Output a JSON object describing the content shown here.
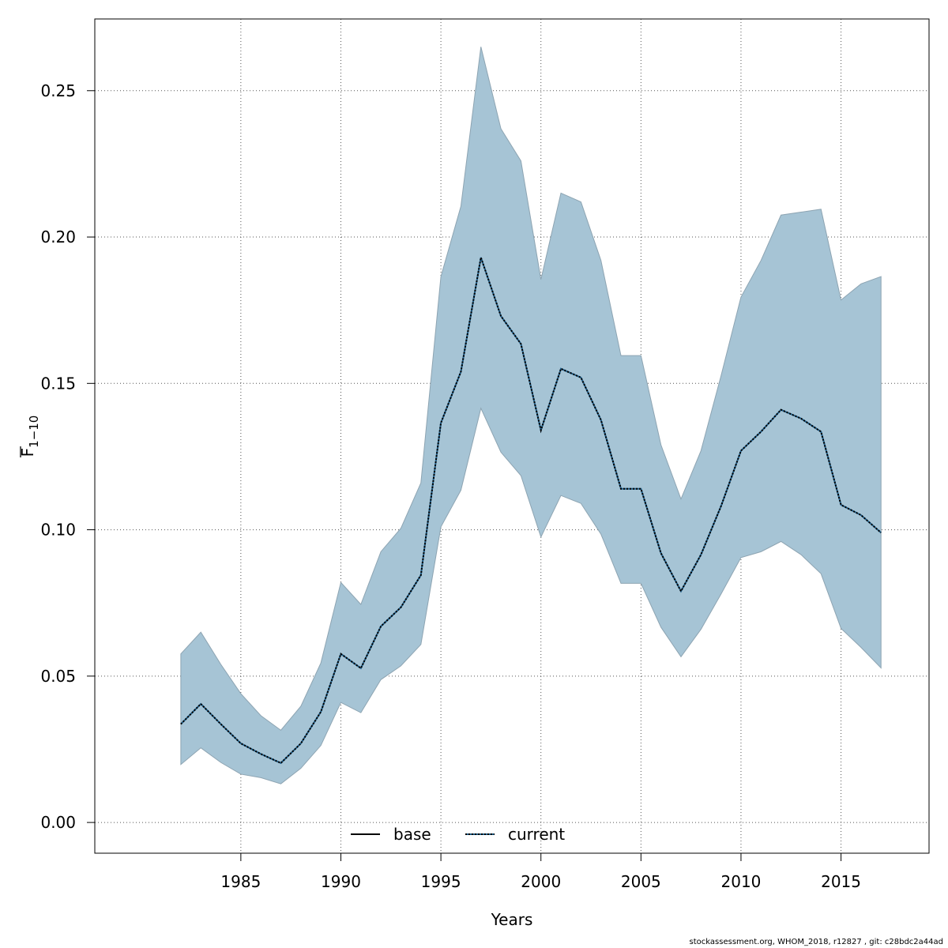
{
  "chart_data": {
    "type": "area",
    "xlabel": "Years",
    "ylabel": "F",
    "ylabel_subscript": "1−10",
    "xlim": [
      1977.7,
      2019.4
    ],
    "ylim": [
      -0.0105,
      0.2745
    ],
    "x_ticks": [
      1985,
      1990,
      1995,
      2000,
      2005,
      2010,
      2015
    ],
    "y_ticks": [
      "0.00",
      "0.05",
      "0.10",
      "0.15",
      "0.20",
      "0.25"
    ],
    "grid": true,
    "years": [
      1982,
      1983,
      1984,
      1985,
      1986,
      1987,
      1988,
      1989,
      1990,
      1991,
      1992,
      1993,
      1994,
      1995,
      1996,
      1997,
      1998,
      1999,
      2000,
      2001,
      2002,
      2003,
      2004,
      2005,
      2006,
      2007,
      2008,
      2009,
      2010,
      2011,
      2012,
      2013,
      2014,
      2015,
      2016,
      2017
    ],
    "series": [
      {
        "name": "current",
        "style": "dotted",
        "color": "#000000",
        "values": [
          0.0336,
          0.0405,
          0.0336,
          0.027,
          0.0234,
          0.0203,
          0.027,
          0.0378,
          0.0576,
          0.0527,
          0.067,
          0.0735,
          0.0845,
          0.1365,
          0.154,
          0.193,
          0.173,
          0.1635,
          0.134,
          0.155,
          0.152,
          0.1375,
          0.114,
          0.114,
          0.092,
          0.079,
          0.0915,
          0.108,
          0.127,
          0.1335,
          0.141,
          0.138,
          0.1335,
          0.1085,
          0.105,
          0.099
        ]
      }
    ],
    "band": {
      "color": "#a6c4d5",
      "edge_color": "#8da4b2",
      "upper": [
        0.0576,
        0.065,
        0.054,
        0.044,
        0.0365,
        0.0315,
        0.0397,
        0.0545,
        0.082,
        0.0745,
        0.0925,
        0.1005,
        0.116,
        0.1865,
        0.2105,
        0.265,
        0.237,
        0.226,
        0.1855,
        0.215,
        0.212,
        0.192,
        0.1595,
        0.1595,
        0.129,
        0.1105,
        0.127,
        0.1525,
        0.1795,
        0.192,
        0.2075,
        0.2085,
        0.2095,
        0.1785,
        0.184,
        0.1865
      ],
      "lower": [
        0.0198,
        0.0255,
        0.0205,
        0.0165,
        0.0153,
        0.0132,
        0.0185,
        0.0263,
        0.041,
        0.0375,
        0.0488,
        0.0535,
        0.0608,
        0.101,
        0.1135,
        0.1415,
        0.1265,
        0.1185,
        0.0975,
        0.1117,
        0.109,
        0.0985,
        0.0817,
        0.0817,
        0.0667,
        0.0566,
        0.066,
        0.078,
        0.0905,
        0.0925,
        0.096,
        0.0915,
        0.085,
        0.0663,
        0.0598,
        0.0528
      ]
    },
    "legend": {
      "position": "bottom-center",
      "entries": [
        {
          "label": "base",
          "style": "solid"
        },
        {
          "label": "current",
          "style": "dotted"
        }
      ]
    }
  },
  "footer": "stockassessment.org, WHOM_2018, r12827 , git: c28bdc2a44ad"
}
